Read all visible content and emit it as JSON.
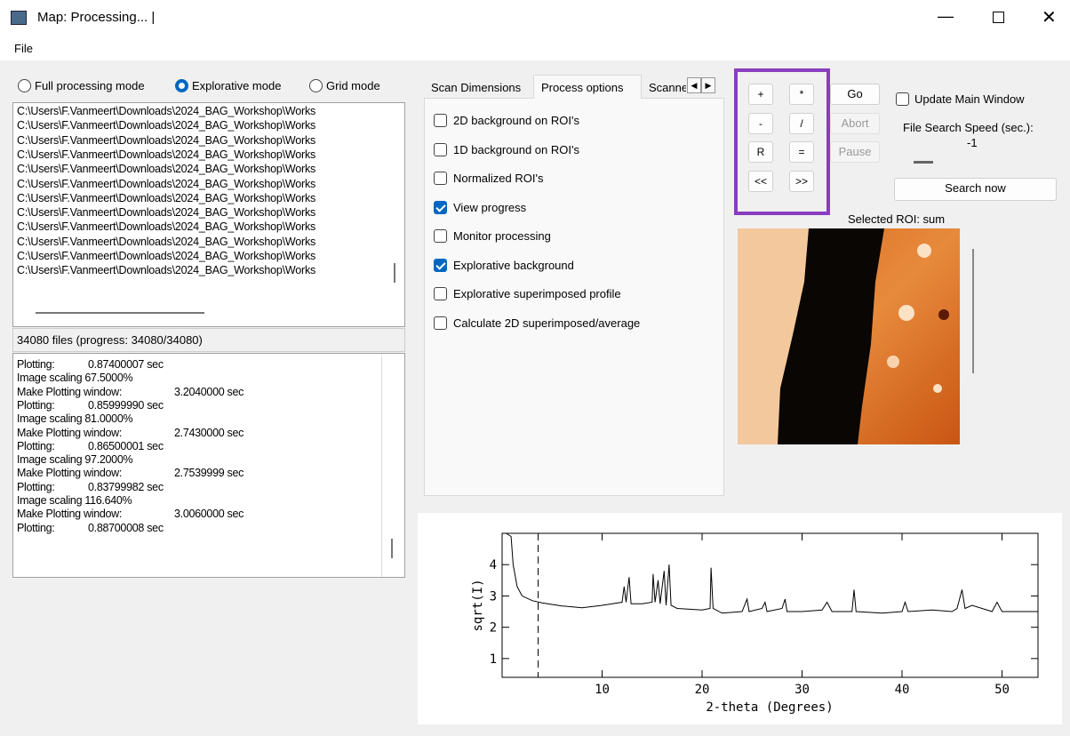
{
  "window": {
    "title": "Map: Processing... |",
    "menu": [
      "File"
    ]
  },
  "modes": [
    {
      "label": "Full processing mode",
      "selected": false
    },
    {
      "label": "Explorative mode",
      "selected": true
    },
    {
      "label": "Grid mode",
      "selected": false
    }
  ],
  "file_list": [
    "C:\\Users\\F.Vanmeert\\Downloads\\2024_BAG_Workshop\\Works",
    "C:\\Users\\F.Vanmeert\\Downloads\\2024_BAG_Workshop\\Works",
    "C:\\Users\\F.Vanmeert\\Downloads\\2024_BAG_Workshop\\Works",
    "C:\\Users\\F.Vanmeert\\Downloads\\2024_BAG_Workshop\\Works",
    "C:\\Users\\F.Vanmeert\\Downloads\\2024_BAG_Workshop\\Works",
    "C:\\Users\\F.Vanmeert\\Downloads\\2024_BAG_Workshop\\Works",
    "C:\\Users\\F.Vanmeert\\Downloads\\2024_BAG_Workshop\\Works",
    "C:\\Users\\F.Vanmeert\\Downloads\\2024_BAG_Workshop\\Works",
    "C:\\Users\\F.Vanmeert\\Downloads\\2024_BAG_Workshop\\Works",
    "C:\\Users\\F.Vanmeert\\Downloads\\2024_BAG_Workshop\\Works",
    "C:\\Users\\F.Vanmeert\\Downloads\\2024_BAG_Workshop\\Works",
    "C:\\Users\\F.Vanmeert\\Downloads\\2024_BAG_Workshop\\Works"
  ],
  "status": "34080 files (progress: 34080/34080)",
  "log": [
    {
      "label": "Plotting:",
      "value": "0.87400007 sec"
    },
    {
      "label": "Image scaling 67.5000%"
    },
    {
      "label": "Make Plotting window:",
      "value": "3.2040000 sec"
    },
    {
      "label": "Plotting:",
      "value": "0.85999990 sec"
    },
    {
      "label": "Image scaling 81.0000%"
    },
    {
      "label": "Make Plotting window:",
      "value": "2.7430000 sec"
    },
    {
      "label": "Plotting:",
      "value": "0.86500001 sec"
    },
    {
      "label": "Image scaling 97.2000%"
    },
    {
      "label": "Make Plotting window:",
      "value": "2.7539999 sec"
    },
    {
      "label": "Plotting:",
      "value": "0.83799982 sec"
    },
    {
      "label": "Image scaling 116.640%"
    },
    {
      "label": "Make Plotting window:",
      "value": "3.0060000 sec"
    },
    {
      "label": "Plotting:",
      "value": "0.88700008 sec"
    }
  ],
  "tabs": [
    {
      "label": "Scan Dimensions",
      "active": false
    },
    {
      "label": "Process options",
      "active": true
    },
    {
      "label": "Scanne",
      "active": false
    }
  ],
  "options": [
    {
      "label": "2D background on ROI's",
      "checked": false
    },
    {
      "label": "1D background on ROI's",
      "checked": false
    },
    {
      "label": "Normalized ROI's",
      "checked": false
    },
    {
      "label": "View progress",
      "checked": true
    },
    {
      "label": "Monitor processing",
      "checked": false
    },
    {
      "label": "Explorative background",
      "checked": true
    },
    {
      "label": "Explorative superimposed profile",
      "checked": false
    },
    {
      "label": "Calculate 2D superimposed/average",
      "checked": false
    }
  ],
  "operators": [
    "+",
    "*",
    "-",
    "/",
    "R",
    "=",
    "<<",
    ">>"
  ],
  "actions": [
    {
      "label": "Go",
      "disabled": false
    },
    {
      "label": "Abort",
      "disabled": true
    },
    {
      "label": "Pause",
      "disabled": true
    }
  ],
  "update_main_window": {
    "label": "Update Main Window",
    "checked": false
  },
  "search_speed": {
    "label": "File Search Speed (sec.):",
    "value": "-1"
  },
  "search_button": "Search now",
  "roi_title": "Selected ROI: sum",
  "plot": {
    "xlabel": "2-theta (Degrees)",
    "ylabel": "sqrt(I)",
    "xlim": [
      0,
      53.6
    ],
    "ylim": [
      0.4,
      5
    ],
    "xticks": [
      10,
      20,
      30,
      40,
      50
    ],
    "yticks": [
      1,
      2,
      3,
      4
    ],
    "marker_x": 3.6,
    "x": [
      0.4,
      0.9,
      1.1,
      1.5,
      2,
      3,
      4,
      6,
      8,
      10,
      11,
      12,
      12.2,
      12.4,
      12.7,
      12.9,
      14,
      15,
      15.1,
      15.3,
      15.6,
      15.8,
      16.2,
      16.4,
      16.7,
      16.9,
      17.5,
      20,
      20.8,
      20.9,
      21.1,
      22,
      24,
      24.5,
      24.7,
      26,
      26.3,
      26.5,
      28,
      28.3,
      28.5,
      30,
      32,
      32.5,
      33,
      35,
      35.2,
      35.4,
      38,
      40,
      40.3,
      40.6,
      43,
      45,
      45.5,
      46,
      46.3,
      47,
      49,
      49.5,
      50,
      53.6
    ],
    "y": [
      5,
      4.9,
      4,
      3.3,
      3.0,
      2.85,
      2.78,
      2.68,
      2.62,
      2.7,
      2.75,
      2.8,
      3.3,
      2.8,
      3.6,
      2.75,
      2.75,
      2.8,
      3.7,
      2.8,
      3.5,
      2.75,
      3.8,
      2.7,
      4,
      2.7,
      2.6,
      2.55,
      2.6,
      3.9,
      2.6,
      2.45,
      2.5,
      2.9,
      2.5,
      2.6,
      2.8,
      2.5,
      2.6,
      2.9,
      2.5,
      2.5,
      2.55,
      2.8,
      2.5,
      2.5,
      3.2,
      2.5,
      2.45,
      2.5,
      2.8,
      2.5,
      2.55,
      2.5,
      2.6,
      3.2,
      2.6,
      2.7,
      2.5,
      2.8,
      2.5,
      2.5
    ]
  }
}
